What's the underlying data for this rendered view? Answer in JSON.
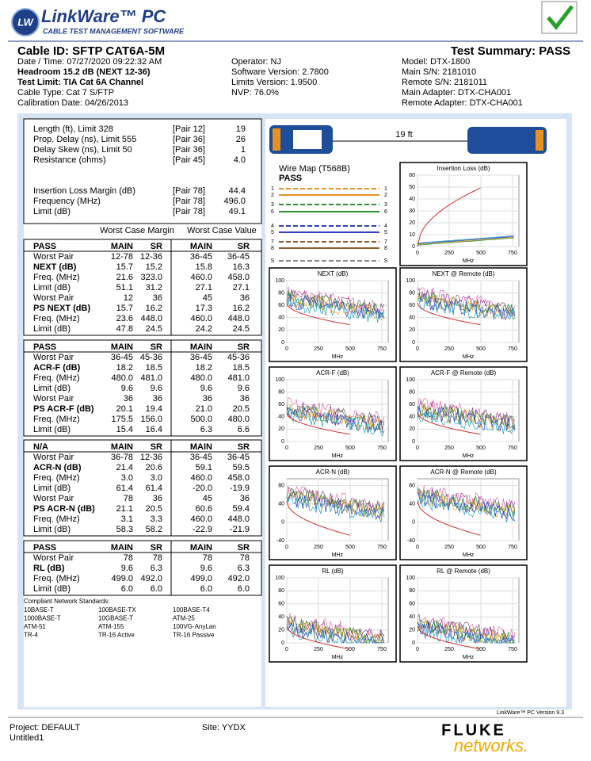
{
  "header": {
    "logo": "LW",
    "brand": "LinkWare™ PC",
    "tagline": "CABLE TEST MANAGEMENT SOFTWARE"
  },
  "info": {
    "cable_id": "Cable ID: SFTP CAT6A-5M",
    "summary": "Test Summary: PASS",
    "left": [
      "Date / Time: 07/27/2020  09:22:32 AM",
      "Headroom 15.2 dB (NEXT 12-36)",
      "Test Limit: TIA Cat 6A Channel",
      "Cable Type: Cat 7 S/FTP",
      "Calibration Date: 04/26/2013"
    ],
    "middle": [
      "Operator: NJ",
      "Software Version: 2.7800",
      "Limits Version: 1.9500",
      "NVP: 76.0%"
    ],
    "right": [
      "Model: DTX-1800",
      "Main S/N: 2181010",
      "Remote S/N: 2181011",
      "Main Adapter: DTX-CHA001",
      "Remote Adapter: DTX-CHA001"
    ]
  },
  "limits": [
    [
      "Length (ft), Limit 328",
      "[Pair 12]",
      "19"
    ],
    [
      "Prop. Delay (ns), Limit 555",
      "[Pair 36]",
      "26"
    ],
    [
      "Delay Skew (ns), Limit 50",
      "[Pair 36]",
      "1"
    ],
    [
      "Resistance (ohms)",
      "[Pair 45]",
      "4.0"
    ],
    [
      "Insertion Loss Margin (dB)",
      "[Pair 78]",
      "44.4"
    ],
    [
      "Frequency (MHz)",
      "[Pair 78]",
      "496.0"
    ],
    [
      "Limit (dB)",
      "[Pair 78]",
      "49.1"
    ]
  ],
  "table_headers": [
    "Worst Case Margin",
    "Worst Case Value"
  ],
  "sections": [
    [
      [
        "PASS",
        "MAIN",
        "SR",
        "MAIN",
        "SR"
      ],
      [
        "Worst Pair",
        "12-78",
        "12-36",
        "36-45",
        "36-45"
      ],
      [
        "NEXT (dB)",
        "15.7",
        "15.2",
        "15.8",
        "16.3"
      ],
      [
        "Freq. (MHz)",
        "21.6",
        "323.0",
        "460.0",
        "458.0"
      ],
      [
        "Limit (dB)",
        "51.1",
        "31.2",
        "27.1",
        "27.1"
      ],
      [
        "Worst Pair",
        "12",
        "36",
        "45",
        "36"
      ],
      [
        "PS NEXT (dB)",
        "15.7",
        "16.2",
        "17.3",
        "16.2"
      ],
      [
        "Freq. (MHz)",
        "23.6",
        "448.0",
        "460.0",
        "448.0"
      ],
      [
        "Limit (dB)",
        "47.8",
        "24.5",
        "24.2",
        "24.5"
      ]
    ],
    [
      [
        "PASS",
        "MAIN",
        "SR",
        "MAIN",
        "SR"
      ],
      [
        "Worst Pair",
        "36-45",
        "45-36",
        "36-45",
        "45-36"
      ],
      [
        "ACR-F (dB)",
        "18.2",
        "18.5",
        "18.2",
        "18.5"
      ],
      [
        "Freq. (MHz)",
        "480.0",
        "481.0",
        "480.0",
        "481.0"
      ],
      [
        "Limit (dB)",
        "9.6",
        "9.6",
        "9.6",
        "9.6"
      ],
      [
        "Worst Pair",
        "36",
        "36",
        "36",
        "36"
      ],
      [
        "PS ACR-F (dB)",
        "20.1",
        "19.4",
        "21.0",
        "20.5"
      ],
      [
        "Freq. (MHz)",
        "175.5",
        "156.0",
        "500.0",
        "480.0"
      ],
      [
        "Limit (dB)",
        "15.4",
        "16.4",
        "6.3",
        "6.6"
      ]
    ],
    [
      [
        "N/A",
        "MAIN",
        "SR",
        "MAIN",
        "SR"
      ],
      [
        "Worst Pair",
        "36-78",
        "12-36",
        "36-45",
        "36-45"
      ],
      [
        "ACR-N (dB)",
        "21.4",
        "20.6",
        "59.1",
        "59.5"
      ],
      [
        "Freq. (MHz)",
        "3.0",
        "3.0",
        "460.0",
        "458.0"
      ],
      [
        "Limit (dB)",
        "61.4",
        "61.4",
        "-20.0",
        "-19.9"
      ],
      [
        "Worst Pair",
        "78",
        "36",
        "45",
        "36"
      ],
      [
        "PS ACR-N (dB)",
        "21.1",
        "20.5",
        "60.6",
        "59.4"
      ],
      [
        "Freq. (MHz)",
        "3.1",
        "3.3",
        "460.0",
        "448.0"
      ],
      [
        "Limit (dB)",
        "58.3",
        "58.2",
        "-22.9",
        "-21.9"
      ]
    ],
    [
      [
        "PASS",
        "MAIN",
        "SR",
        "MAIN",
        "SR"
      ],
      [
        "Worst Pair",
        "78",
        "78",
        "78",
        "78"
      ],
      [
        "RL (dB)",
        "9.6",
        "6.3",
        "9.6",
        "6.3"
      ],
      [
        "Freq. (MHz)",
        "499.0",
        "492.0",
        "499.0",
        "492.0"
      ],
      [
        "Limit (dB)",
        "6.0",
        "6.0",
        "6.0",
        "6.0"
      ]
    ]
  ],
  "standards": {
    "title": "Compliant Network Standards:",
    "items": [
      "10BASE-T",
      "100BASE-TX",
      "100BASE-T4",
      "1000BASE-T",
      "10GBASE-T",
      "ATM-25",
      "ATM-51",
      "ATM-155",
      "100VG-AnyLan",
      "TR-4",
      "TR-16 Active",
      "TR-16 Passive"
    ]
  },
  "length": "19 ft",
  "wire_map": {
    "title": "Wire Map (T568B)",
    "status": "PASS",
    "pins": [
      "1",
      "2",
      "3",
      "6",
      "4",
      "5",
      "7",
      "8",
      "S"
    ]
  },
  "charts": [
    {
      "title": "Insertion Loss (dB)",
      "xlabel": "MHz",
      "xlim": [
        0,
        800
      ],
      "xticks": [
        0,
        250,
        500,
        750
      ],
      "ylim": [
        0,
        60
      ],
      "yticks": [
        0,
        10,
        20,
        30,
        40,
        50,
        60
      ]
    },
    {
      "title": "NEXT (dB)",
      "xlabel": "MHz",
      "xlim": [
        0,
        800
      ],
      "xticks": [
        0,
        250,
        500,
        750
      ],
      "ylim": [
        0,
        100
      ],
      "yticks": [
        0,
        20,
        40,
        60,
        80,
        100
      ]
    },
    {
      "title": "NEXT @ Remote (dB)",
      "xlabel": "MHz",
      "xlim": [
        0,
        800
      ],
      "xticks": [
        0,
        250,
        500,
        750
      ],
      "ylim": [
        0,
        100
      ],
      "yticks": [
        0,
        20,
        40,
        60,
        80,
        100
      ]
    },
    {
      "title": "ACR-F (dB)",
      "xlabel": "MHz",
      "xlim": [
        0,
        800
      ],
      "xticks": [
        0,
        250,
        500,
        750
      ],
      "ylim": [
        0,
        100
      ],
      "yticks": [
        0,
        20,
        40,
        60,
        80,
        100
      ]
    },
    {
      "title": "ACR-F @ Remote (dB)",
      "xlabel": "MHz",
      "xlim": [
        0,
        800
      ],
      "xticks": [
        0,
        250,
        500,
        750
      ],
      "ylim": [
        0,
        100
      ],
      "yticks": [
        0,
        20,
        40,
        60,
        80,
        100
      ]
    },
    {
      "title": "ACR-N (dB)",
      "xlabel": "MHz",
      "xlim": [
        0,
        800
      ],
      "xticks": [
        0,
        250,
        500,
        750
      ],
      "ylim": [
        -40,
        95
      ],
      "yticks": [
        -40,
        0,
        40,
        80
      ]
    },
    {
      "title": "ACR-N @ Remote (dB)",
      "xlabel": "MHz",
      "xlim": [
        0,
        800
      ],
      "xticks": [
        0,
        250,
        500,
        750
      ],
      "ylim": [
        -40,
        95
      ],
      "yticks": [
        -40,
        0,
        40,
        80
      ]
    },
    {
      "title": "RL (dB)",
      "xlabel": "MHz",
      "xlim": [
        0,
        800
      ],
      "xticks": [
        0,
        250,
        500,
        750
      ],
      "ylim": [
        0,
        100
      ],
      "yticks": [
        0,
        20,
        40,
        60,
        80,
        100
      ]
    },
    {
      "title": "RL @ Remote (dB)",
      "xlabel": "MHz",
      "xlim": [
        0,
        800
      ],
      "xticks": [
        0,
        250,
        500,
        750
      ],
      "ylim": [
        0,
        100
      ],
      "yticks": [
        0,
        20,
        40,
        60,
        80,
        100
      ]
    }
  ],
  "footer": {
    "version": "LinkWare™ PC Version 9.3",
    "project": "Project: DEFAULT",
    "site": "Site: YYDX",
    "file": "Untitled1",
    "brand": "FLUKE",
    "brand_sub": "networks."
  }
}
